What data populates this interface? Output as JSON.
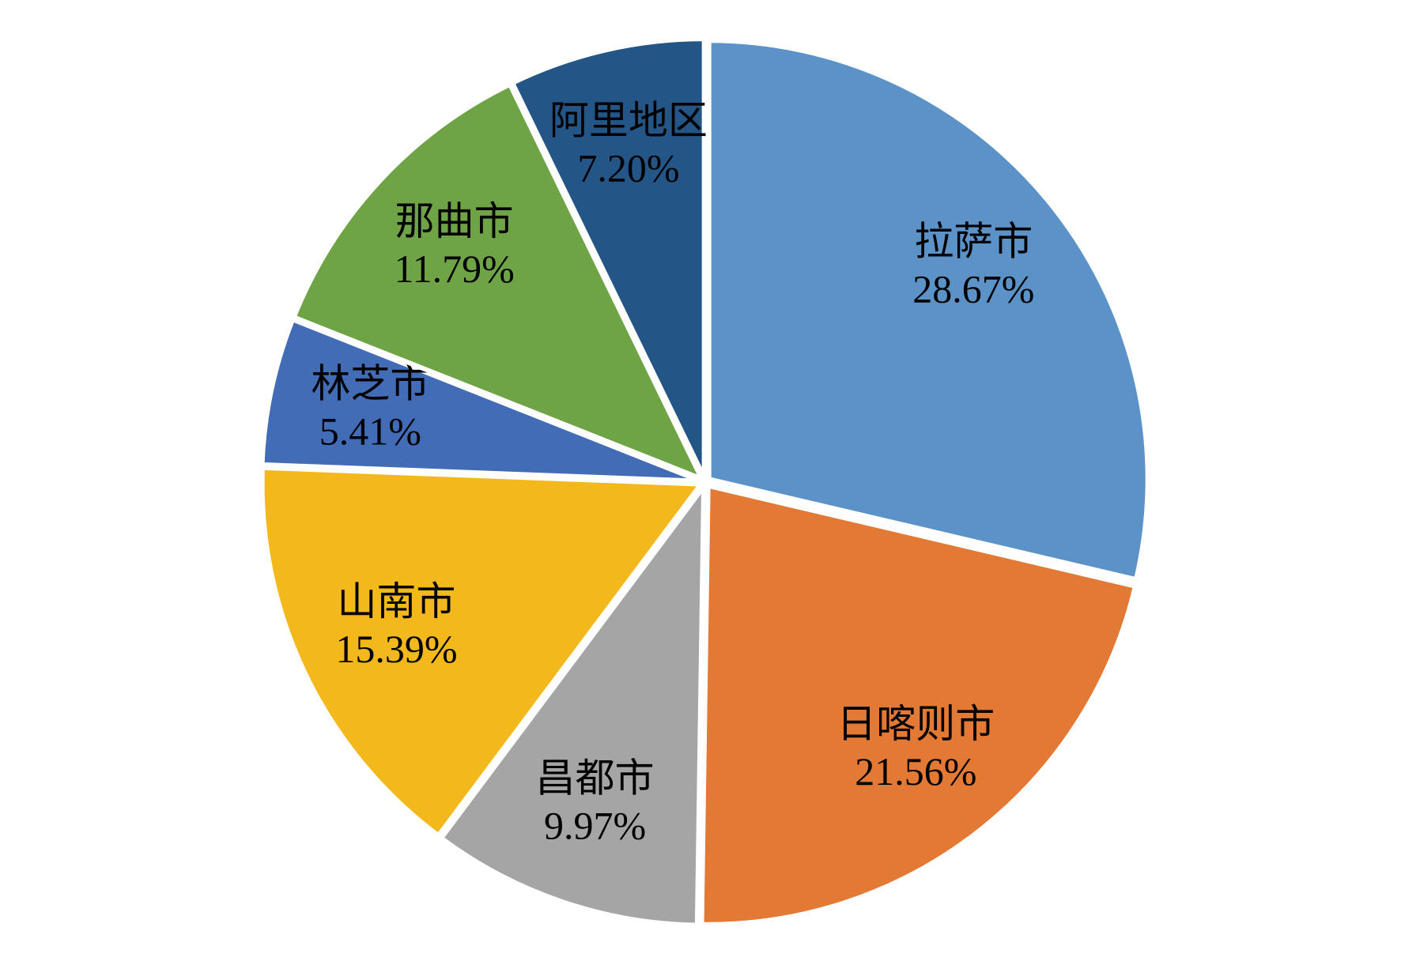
{
  "chart_data": {
    "type": "pie",
    "categories": [
      "拉萨市",
      "日喀则市",
      "昌都市",
      "山南市",
      "林芝市",
      "那曲市",
      "阿里地区"
    ],
    "values": [
      28.67,
      21.56,
      9.97,
      15.39,
      5.41,
      11.79,
      7.2
    ],
    "value_labels": [
      "28.67%",
      "21.56%",
      "9.97%",
      "15.39%",
      "5.41%",
      "11.79%",
      "7.20%"
    ],
    "colors": [
      "#5b93c8",
      "#e27934",
      "#a5a5a5",
      "#f3b81c",
      "#426cb5",
      "#6fa446",
      "#245587"
    ]
  }
}
